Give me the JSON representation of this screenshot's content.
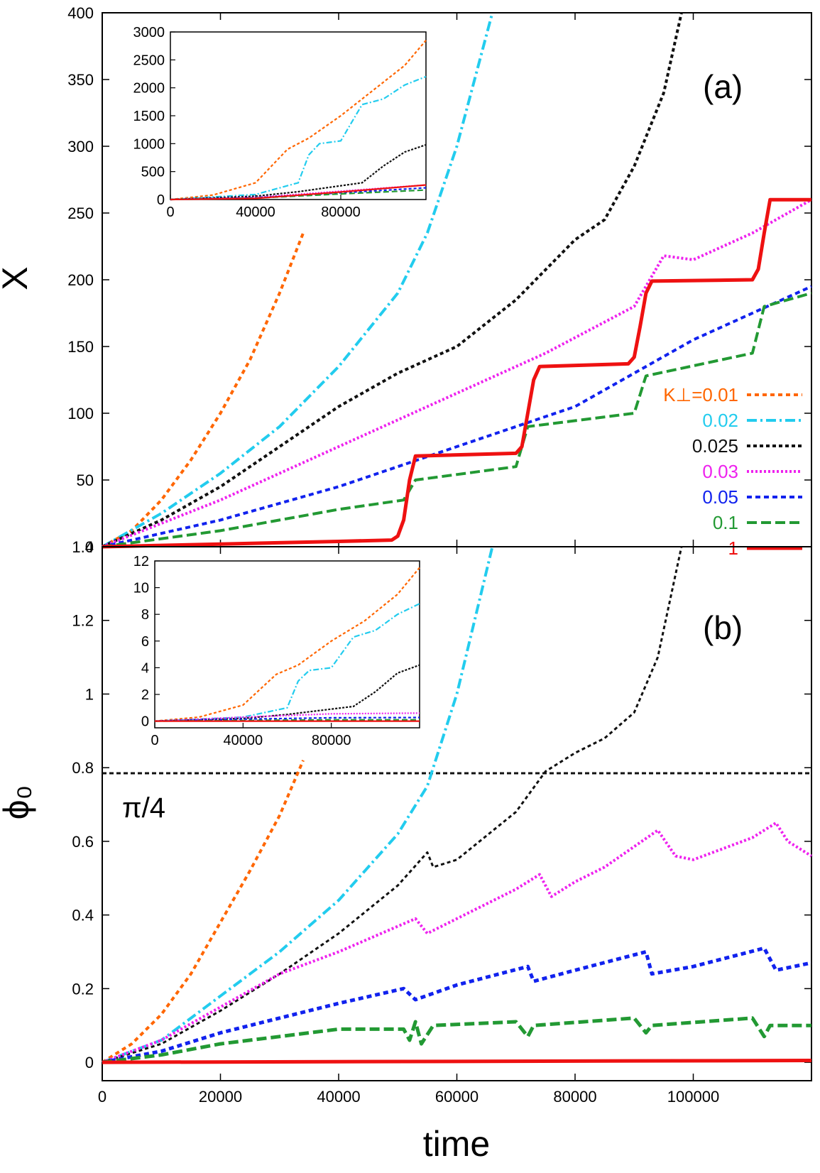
{
  "chart_data": [
    {
      "id": "a",
      "type": "line",
      "panel_label": "(a)",
      "ylabel": "X",
      "xlabel": "",
      "xlim": [
        0,
        120000
      ],
      "ylim": [
        0,
        400
      ],
      "xticks": [
        "0",
        "20000",
        "40000",
        "60000",
        "80000",
        "100000"
      ],
      "yticks": [
        "0",
        "50",
        "100",
        "150",
        "200",
        "250",
        "300",
        "350",
        "400"
      ],
      "legend_title": "K⊥=",
      "series": [
        {
          "name": "0.01",
          "label": "K⊥=0.01",
          "color": "#ff6600",
          "dash": "6,5",
          "width": 4,
          "x": [
            0,
            5000,
            10000,
            15000,
            20000,
            25000,
            30000,
            34000
          ],
          "y": [
            0,
            12,
            35,
            65,
            100,
            140,
            190,
            235
          ]
        },
        {
          "name": "0.02",
          "label": "0.02",
          "color": "#22ccee",
          "dash": "14,5,3,5",
          "width": 4,
          "x": [
            0,
            10000,
            20000,
            30000,
            40000,
            50000,
            55000,
            60000,
            63000,
            66000
          ],
          "y": [
            0,
            25,
            55,
            90,
            135,
            190,
            235,
            300,
            350,
            400
          ]
        },
        {
          "name": "0.025",
          "label": "0.025",
          "color": "#111111",
          "dash": "5,4",
          "width": 4,
          "x": [
            0,
            10000,
            20000,
            30000,
            40000,
            50000,
            55000,
            60000,
            70000,
            80000,
            85000,
            90000,
            95000,
            98000
          ],
          "y": [
            0,
            20,
            45,
            75,
            105,
            130,
            140,
            150,
            185,
            230,
            245,
            285,
            340,
            400
          ]
        },
        {
          "name": "0.03",
          "label": "0.03",
          "color": "#ee22ee",
          "dash": "3,3",
          "width": 4,
          "x": [
            0,
            20000,
            40000,
            60000,
            75000,
            90000,
            95000,
            100000,
            110000,
            120000
          ],
          "y": [
            0,
            35,
            75,
            115,
            145,
            180,
            218,
            215,
            235,
            260
          ]
        },
        {
          "name": "0.05",
          "label": "0.05",
          "color": "#1122ee",
          "dash": "7,5",
          "width": 4,
          "x": [
            0,
            20000,
            40000,
            60000,
            80000,
            100000,
            120000
          ],
          "y": [
            0,
            20,
            45,
            75,
            105,
            155,
            195
          ]
        },
        {
          "name": "0.1",
          "label": "0.1",
          "color": "#229933",
          "dash": "14,6",
          "width": 4,
          "x": [
            0,
            20000,
            40000,
            51000,
            53000,
            70000,
            72000,
            90000,
            92000,
            110000,
            112000,
            120000
          ],
          "y": [
            0,
            12,
            28,
            35,
            50,
            60,
            90,
            100,
            128,
            145,
            180,
            190
          ]
        },
        {
          "name": "1",
          "label": "1",
          "color": "#ee1111",
          "dash": "",
          "width": 5,
          "x": [
            0,
            20000,
            40000,
            49000,
            50000,
            51000,
            52000,
            53000,
            70000,
            71000,
            72000,
            73000,
            74000,
            89000,
            90000,
            91000,
            92000,
            93000,
            110000,
            111000,
            112000,
            113000,
            120000
          ],
          "y": [
            0,
            2,
            4,
            5,
            8,
            20,
            50,
            68,
            70,
            75,
            100,
            125,
            135,
            137,
            142,
            165,
            190,
            199,
            200,
            208,
            235,
            260,
            260
          ]
        }
      ],
      "inset": {
        "xlim": [
          0,
          120000
        ],
        "ylim": [
          0,
          3000
        ],
        "xticks": [
          "0",
          "40000",
          "80000"
        ],
        "yticks": [
          "0",
          "500",
          "1000",
          "1500",
          "2000",
          "2500",
          "3000"
        ],
        "series": [
          {
            "name": "0.01",
            "x": [
              0,
              20000,
              40000,
              55000,
              65000,
              80000,
              95000,
              110000,
              120000
            ],
            "y": [
              0,
              80,
              300,
              900,
              1100,
              1500,
              1950,
              2400,
              2850
            ]
          },
          {
            "name": "0.02",
            "x": [
              0,
              40000,
              60000,
              65000,
              70000,
              80000,
              90000,
              100000,
              110000,
              120000
            ],
            "y": [
              0,
              90,
              300,
              800,
              1000,
              1050,
              1700,
              1800,
              2050,
              2200
            ]
          },
          {
            "name": "0.025",
            "x": [
              0,
              40000,
              60000,
              90000,
              100000,
              110000,
              120000
            ],
            "y": [
              0,
              60,
              140,
              300,
              600,
              850,
              980
            ]
          },
          {
            "name": "0.03",
            "x": [
              0,
              40000,
              80000,
              120000
            ],
            "y": [
              0,
              40,
              150,
              260
            ]
          },
          {
            "name": "0.05",
            "x": [
              0,
              40000,
              80000,
              120000
            ],
            "y": [
              0,
              30,
              120,
              210
            ]
          },
          {
            "name": "0.1",
            "x": [
              0,
              40000,
              80000,
              120000
            ],
            "y": [
              0,
              25,
              100,
              170
            ]
          },
          {
            "name": "1",
            "x": [
              0,
              40000,
              80000,
              120000
            ],
            "y": [
              0,
              20,
              135,
              260
            ]
          }
        ]
      }
    },
    {
      "id": "b",
      "type": "line",
      "panel_label": "(b)",
      "ylabel": "ϕ₀",
      "xlabel": "time",
      "xlim": [
        0,
        120000
      ],
      "ylim": [
        -0.05,
        1.4
      ],
      "xticks": [
        "0",
        "20000",
        "40000",
        "60000",
        "80000",
        "100000"
      ],
      "yticks": [
        "0",
        "0.2",
        "0.4",
        "0.6",
        "0.8",
        "1",
        "1.2",
        "1.4"
      ],
      "reference_line": {
        "label": "π/4",
        "value": 0.785
      },
      "series": [
        {
          "name": "0.01",
          "color": "#ff6600",
          "dash": "6,5",
          "width": 4,
          "x": [
            0,
            5000,
            10000,
            15000,
            20000,
            25000,
            30000,
            34000
          ],
          "y": [
            0,
            0.05,
            0.13,
            0.24,
            0.38,
            0.52,
            0.67,
            0.82
          ]
        },
        {
          "name": "0.02",
          "color": "#22ccee",
          "dash": "14,5,3,5",
          "width": 4,
          "x": [
            0,
            10000,
            20000,
            30000,
            40000,
            50000,
            55000,
            60000,
            63000,
            66000
          ],
          "y": [
            0,
            0.06,
            0.18,
            0.3,
            0.44,
            0.62,
            0.75,
            1.0,
            1.2,
            1.4
          ]
        },
        {
          "name": "0.025",
          "color": "#111111",
          "dash": "5,4",
          "width": 3,
          "x": [
            0,
            10000,
            20000,
            30000,
            40000,
            50000,
            55000,
            56000,
            60000,
            70000,
            75000,
            80000,
            85000,
            90000,
            94000,
            96000,
            98000
          ],
          "y": [
            0,
            0.05,
            0.14,
            0.24,
            0.35,
            0.48,
            0.57,
            0.53,
            0.55,
            0.68,
            0.79,
            0.84,
            0.88,
            0.95,
            1.1,
            1.25,
            1.4
          ]
        },
        {
          "name": "0.03",
          "color": "#ee22ee",
          "dash": "3,3",
          "width": 4,
          "x": [
            0,
            10000,
            20000,
            30000,
            40000,
            53000,
            55000,
            60000,
            70000,
            74000,
            76000,
            80000,
            85000,
            94000,
            97000,
            100000,
            110000,
            114000,
            116000,
            120000
          ],
          "y": [
            0,
            0.06,
            0.15,
            0.24,
            0.3,
            0.39,
            0.35,
            0.39,
            0.47,
            0.51,
            0.45,
            0.49,
            0.53,
            0.63,
            0.56,
            0.55,
            0.61,
            0.65,
            0.6,
            0.56
          ]
        },
        {
          "name": "0.05",
          "color": "#1122ee",
          "dash": "7,5",
          "width": 5,
          "x": [
            0,
            10000,
            20000,
            30000,
            40000,
            51000,
            53000,
            60000,
            72000,
            73000,
            80000,
            92000,
            93000,
            100000,
            112000,
            114000,
            120000
          ],
          "y": [
            0,
            0.03,
            0.08,
            0.12,
            0.16,
            0.2,
            0.17,
            0.21,
            0.26,
            0.22,
            0.25,
            0.3,
            0.24,
            0.26,
            0.31,
            0.25,
            0.27
          ]
        },
        {
          "name": "0.1",
          "color": "#229933",
          "dash": "14,6",
          "width": 5,
          "x": [
            0,
            10000,
            20000,
            30000,
            40000,
            51000,
            52000,
            53000,
            54000,
            56000,
            70000,
            72000,
            73000,
            90000,
            92000,
            93000,
            110000,
            112000,
            113000,
            120000
          ],
          "y": [
            0,
            0.02,
            0.05,
            0.07,
            0.09,
            0.09,
            0.06,
            0.11,
            0.05,
            0.1,
            0.11,
            0.07,
            0.1,
            0.12,
            0.08,
            0.1,
            0.12,
            0.07,
            0.1,
            0.1
          ]
        },
        {
          "name": "1",
          "color": "#ee1111",
          "dash": "",
          "width": 5,
          "x": [
            0,
            120000
          ],
          "y": [
            0,
            0.005
          ]
        }
      ],
      "inset": {
        "xlim": [
          0,
          120000
        ],
        "ylim": [
          -0.5,
          12
        ],
        "xticks": [
          "0",
          "40000",
          "80000"
        ],
        "yticks": [
          "0",
          "2",
          "4",
          "6",
          "8",
          "10",
          "12"
        ],
        "series": [
          {
            "name": "0.01",
            "x": [
              0,
              20000,
              40000,
              55000,
              65000,
              80000,
              95000,
              110000,
              120000
            ],
            "y": [
              0,
              0.3,
              1.2,
              3.5,
              4.2,
              6.0,
              7.5,
              9.5,
              11.5
            ]
          },
          {
            "name": "0.02",
            "x": [
              0,
              40000,
              60000,
              65000,
              70000,
              80000,
              90000,
              100000,
              110000,
              120000
            ],
            "y": [
              0,
              0.3,
              1.0,
              3.0,
              3.8,
              4.0,
              6.3,
              6.8,
              8.0,
              8.8
            ]
          },
          {
            "name": "0.025",
            "x": [
              0,
              40000,
              60000,
              90000,
              100000,
              110000,
              120000
            ],
            "y": [
              0,
              0.2,
              0.5,
              1.1,
              2.2,
              3.6,
              4.2
            ]
          },
          {
            "name": "0.03",
            "x": [
              0,
              40000,
              80000,
              120000
            ],
            "y": [
              0,
              0.3,
              0.55,
              0.6
            ]
          },
          {
            "name": "0.05",
            "x": [
              0,
              40000,
              80000,
              120000
            ],
            "y": [
              0,
              0.15,
              0.25,
              0.27
            ]
          },
          {
            "name": "0.1",
            "x": [
              0,
              40000,
              80000,
              120000
            ],
            "y": [
              0,
              0.05,
              0.1,
              0.1
            ]
          },
          {
            "name": "1",
            "x": [
              0,
              120000
            ],
            "y": [
              0,
              0.0
            ]
          }
        ]
      }
    }
  ]
}
